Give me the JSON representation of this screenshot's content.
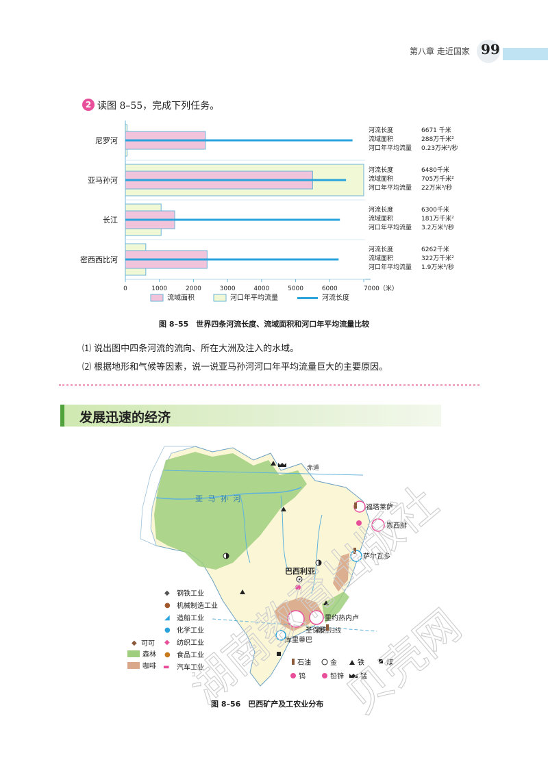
{
  "header": {
    "chapter": "第八章 走近国家",
    "page_number": "99"
  },
  "task": {
    "number": "2",
    "text": "读图 8–55，完成下列任务。"
  },
  "chart_data": {
    "type": "bar",
    "categories": [
      "尼罗河",
      "亚马孙河",
      "长江",
      "密西西比河"
    ],
    "series": [
      {
        "name": "流域面积",
        "values": [
          2350,
          5500,
          1450,
          2400
        ]
      },
      {
        "name": "河口年平均流量",
        "values": [
          50,
          7000,
          1050,
          600
        ]
      },
      {
        "name": "河流长度",
        "values": [
          6671,
          6480,
          6300,
          6262
        ]
      }
    ],
    "xlim": [
      0,
      7000
    ],
    "xticks": [
      "0",
      "1000",
      "2000",
      "3000",
      "4000",
      "5000",
      "6000",
      "7000（米）"
    ],
    "annotations": [
      {
        "river": "尼罗河",
        "rows": [
          {
            "label": "河流长度",
            "value": "6671 千米"
          },
          {
            "label": "流域面积",
            "value": "288万千米²"
          },
          {
            "label": "河口年平均流量",
            "value": "0.23万米³/秒"
          }
        ]
      },
      {
        "river": "亚马孙河",
        "rows": [
          {
            "label": "河流长度",
            "value": "6480千米"
          },
          {
            "label": "流域面积",
            "value": "705万千米²"
          },
          {
            "label": "河口年平均流量",
            "value": "22万米³/秒"
          }
        ]
      },
      {
        "river": "长江",
        "rows": [
          {
            "label": "河流长度",
            "value": "6300千米"
          },
          {
            "label": "流域面积",
            "value": "181万千米²"
          },
          {
            "label": "河口年平均流量",
            "value": "3.2万米³/秒"
          }
        ]
      },
      {
        "river": "密西西比河",
        "rows": [
          {
            "label": "河流长度",
            "value": "6262千米"
          },
          {
            "label": "流域面积",
            "value": "322万千米²"
          },
          {
            "label": "河口年平均流量",
            "value": "1.9万米³/秒"
          }
        ]
      }
    ],
    "legend": [
      "流域面积",
      "河口年平均流量",
      "河流长度"
    ],
    "legend_position": "bottom",
    "colors": {
      "area": "#f2c4dc",
      "flow": "#f1f8d6",
      "length": "#2aa3dc",
      "outline": "#6ab4d8"
    }
  },
  "figure1_caption": "图 8–55　世界四条河流长度、流域面积和河口年平均流量比较",
  "questions": [
    "⑴  说出图中四条河流的流向、所在大洲及注入的水域。",
    "⑵  根据地形和气候等因素，说一说亚马孙河河口年平均流量巨大的主要原因。"
  ],
  "section_title": "发展迅速的经济",
  "map": {
    "labels": {
      "equator": "赤道",
      "amazon": "亚 马 孙 河",
      "belem": "福塔莱萨",
      "recife": "累西腓",
      "salvador": "萨尔瓦多",
      "brasilia": "巴西利亚",
      "rio": "里约热内卢",
      "saopaulo": "圣保罗",
      "curitiba": "库里蒂巴",
      "tropic": "南回归线"
    },
    "industry_legend": [
      "钢铁工业",
      "机械制造工业",
      "造船工业",
      "化学工业",
      "纺织工业",
      "食品工业",
      "汽车工业"
    ],
    "area_legend": [
      "可可",
      "森林",
      "咖啡"
    ],
    "mineral_legend": [
      "石油",
      "金",
      "铁",
      "煤",
      "钨",
      "铅锌",
      "锰"
    ],
    "colors": {
      "forest": "#9fcf7e",
      "coffee": "#d9a789",
      "land": "#fbf6d6",
      "sea": "#ffffff",
      "river": "#5fb2dc"
    }
  },
  "figure2_caption": "图 8–56　巴西矿产及工农业分布",
  "watermark": [
    "湖南教育出版社",
    "贝壳网"
  ]
}
